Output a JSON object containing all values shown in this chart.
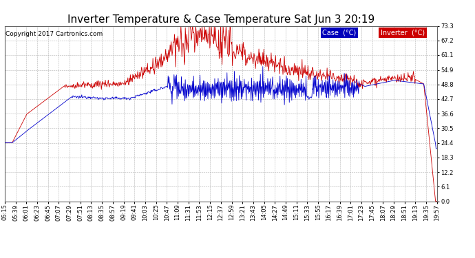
{
  "title": "Inverter Temperature & Case Temperature Sat Jun 3 20:19",
  "copyright": "Copyright 2017 Cartronics.com",
  "legend_labels": [
    "Case  (°C)",
    "Inverter  (°C)"
  ],
  "legend_bg_colors": [
    "#0000bb",
    "#cc0000"
  ],
  "legend_text_colors": [
    "#ffffff",
    "#ffffff"
  ],
  "case_color": "#0000cc",
  "inverter_color": "#cc0000",
  "background_color": "#ffffff",
  "plot_background": "#ffffff",
  "grid_color": "#b0b0b0",
  "ylim": [
    0.0,
    73.3
  ],
  "yticks": [
    0.0,
    6.1,
    12.2,
    18.3,
    24.4,
    30.5,
    36.6,
    42.7,
    48.8,
    54.9,
    61.1,
    67.2,
    73.3
  ],
  "xtick_labels": [
    "05:15",
    "05:39",
    "06:01",
    "06:23",
    "06:45",
    "07:07",
    "07:29",
    "07:51",
    "08:13",
    "08:35",
    "08:57",
    "09:19",
    "09:41",
    "10:03",
    "10:25",
    "10:47",
    "11:09",
    "11:31",
    "11:53",
    "12:15",
    "12:37",
    "12:59",
    "13:21",
    "13:43",
    "14:05",
    "14:27",
    "14:49",
    "15:11",
    "15:33",
    "15:55",
    "16:17",
    "16:39",
    "17:01",
    "17:23",
    "17:45",
    "18:07",
    "18:29",
    "18:51",
    "19:13",
    "19:35",
    "19:57"
  ],
  "title_fontsize": 11,
  "tick_fontsize": 6,
  "legend_fontsize": 7,
  "copyright_fontsize": 6.5,
  "figsize": [
    6.9,
    3.75
  ],
  "dpi": 100
}
